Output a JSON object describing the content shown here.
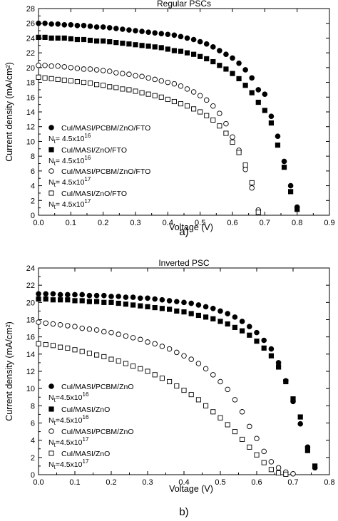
{
  "chart_data": [
    {
      "type": "scatter",
      "title": "Regular PSCs",
      "panel_label": "a)",
      "xlabel": "Voltage (V)",
      "ylabel": "Current density (mA/cm²)",
      "xlim": [
        0,
        0.9
      ],
      "ylim": [
        0,
        28
      ],
      "xticks": [
        "0.0",
        "0.1",
        "0.2",
        "0.3",
        "0.4",
        "0.5",
        "0.6",
        "0.7",
        "0.8",
        "0.9"
      ],
      "yticks": [
        "0",
        "2",
        "4",
        "6",
        "8",
        "10",
        "12",
        "14",
        "16",
        "18",
        "20",
        "22",
        "24",
        "26",
        "28"
      ],
      "grid": false,
      "legend_position": "lower-left",
      "series": [
        {
          "name": "CuI/MASI/PCBM/ZnO/FTO",
          "nt_label": "N",
          "nt_sub": "t",
          "nt_value": "= 4.5x10",
          "nt_exp": "16",
          "marker": "filled-circle",
          "x": [
            0.0,
            0.02,
            0.04,
            0.06,
            0.08,
            0.1,
            0.12,
            0.14,
            0.16,
            0.18,
            0.2,
            0.22,
            0.24,
            0.26,
            0.28,
            0.3,
            0.32,
            0.34,
            0.36,
            0.38,
            0.4,
            0.42,
            0.44,
            0.46,
            0.48,
            0.5,
            0.52,
            0.54,
            0.56,
            0.58,
            0.6,
            0.62,
            0.64,
            0.66,
            0.68,
            0.7,
            0.72,
            0.74,
            0.76,
            0.78,
            0.8
          ],
          "y": [
            26.0,
            26.0,
            25.9,
            25.9,
            25.8,
            25.8,
            25.7,
            25.7,
            25.6,
            25.5,
            25.5,
            25.4,
            25.3,
            25.2,
            25.1,
            25.0,
            24.9,
            24.8,
            24.7,
            24.6,
            24.5,
            24.4,
            24.2,
            24.0,
            23.8,
            23.5,
            23.2,
            22.8,
            22.3,
            21.8,
            21.3,
            20.6,
            19.7,
            18.6,
            17.0,
            16.4,
            13.4,
            10.7,
            7.3,
            4.0,
            1.1
          ]
        },
        {
          "name": "CuI/MASI/ZnO/FTO",
          "nt_label": "N",
          "nt_sub": "t",
          "nt_value": "= 4.5x10",
          "nt_exp": "16",
          "marker": "filled-square",
          "x": [
            0.0,
            0.02,
            0.04,
            0.06,
            0.08,
            0.1,
            0.12,
            0.14,
            0.16,
            0.18,
            0.2,
            0.22,
            0.24,
            0.26,
            0.28,
            0.3,
            0.32,
            0.34,
            0.36,
            0.38,
            0.4,
            0.42,
            0.44,
            0.46,
            0.48,
            0.5,
            0.52,
            0.54,
            0.56,
            0.58,
            0.6,
            0.62,
            0.64,
            0.66,
            0.68,
            0.7,
            0.72,
            0.74,
            0.76,
            0.78,
            0.8
          ],
          "y": [
            24.1,
            24.1,
            24.0,
            24.0,
            24.0,
            23.9,
            23.8,
            23.8,
            23.7,
            23.6,
            23.6,
            23.5,
            23.4,
            23.3,
            23.2,
            23.1,
            23.0,
            22.9,
            22.8,
            22.7,
            22.5,
            22.3,
            22.2,
            22.0,
            21.8,
            21.5,
            21.2,
            20.8,
            20.3,
            19.8,
            19.2,
            18.5,
            17.6,
            16.6,
            15.3,
            14.2,
            12.5,
            9.5,
            6.5,
            3.2,
            0.8
          ]
        },
        {
          "name": "CuI/MASI/PCBM/ZnO/FTO",
          "nt_label": "N",
          "nt_sub": "t",
          "nt_value": "= 4.5x10",
          "nt_exp": "17",
          "marker": "open-circle",
          "x": [
            0.0,
            0.02,
            0.04,
            0.06,
            0.08,
            0.1,
            0.12,
            0.14,
            0.16,
            0.18,
            0.2,
            0.22,
            0.24,
            0.26,
            0.28,
            0.3,
            0.32,
            0.34,
            0.36,
            0.38,
            0.4,
            0.42,
            0.44,
            0.46,
            0.48,
            0.5,
            0.52,
            0.54,
            0.56,
            0.58,
            0.6,
            0.62,
            0.64,
            0.66,
            0.68
          ],
          "y": [
            20.3,
            20.3,
            20.2,
            20.2,
            20.1,
            20.0,
            19.9,
            19.8,
            19.8,
            19.7,
            19.6,
            19.5,
            19.3,
            19.2,
            19.1,
            18.9,
            18.8,
            18.6,
            18.4,
            18.2,
            18.0,
            17.8,
            17.5,
            17.1,
            16.7,
            16.2,
            15.6,
            14.8,
            13.8,
            12.4,
            10.6,
            8.8,
            6.2,
            3.7,
            0.7
          ]
        },
        {
          "name": "CuI/MASI/ZnO/FTO",
          "nt_label": "N",
          "nt_sub": "t",
          "nt_value": "= 4.5x10",
          "nt_exp": "17",
          "marker": "open-square",
          "x": [
            0.0,
            0.02,
            0.04,
            0.06,
            0.08,
            0.1,
            0.12,
            0.14,
            0.16,
            0.18,
            0.2,
            0.22,
            0.24,
            0.26,
            0.28,
            0.3,
            0.32,
            0.34,
            0.36,
            0.38,
            0.4,
            0.42,
            0.44,
            0.46,
            0.48,
            0.5,
            0.52,
            0.54,
            0.56,
            0.58,
            0.6,
            0.62,
            0.64,
            0.66,
            0.68
          ],
          "y": [
            18.7,
            18.6,
            18.5,
            18.4,
            18.3,
            18.2,
            18.1,
            18.0,
            17.9,
            17.7,
            17.6,
            17.4,
            17.3,
            17.1,
            17.0,
            16.8,
            16.6,
            16.4,
            16.2,
            16.0,
            15.7,
            15.4,
            15.1,
            14.8,
            14.4,
            14.0,
            13.5,
            12.9,
            12.1,
            11.1,
            9.9,
            8.5,
            6.8,
            4.4,
            0.4
          ]
        }
      ]
    },
    {
      "type": "scatter",
      "title": "Inverted PSC",
      "panel_label": "b)",
      "xlabel": "Voltage (V)",
      "ylabel": "Current density (mA/cm²)",
      "xlim": [
        0,
        0.8
      ],
      "ylim": [
        0,
        24
      ],
      "xticks": [
        "0.0",
        "0.1",
        "0.2",
        "0.3",
        "0.4",
        "0.5",
        "0.6",
        "0.7",
        "0.8"
      ],
      "yticks": [
        "0",
        "2",
        "4",
        "6",
        "8",
        "10",
        "12",
        "14",
        "16",
        "18",
        "20",
        "22",
        "24"
      ],
      "grid": false,
      "legend_position": "lower-left",
      "series": [
        {
          "name": "CuI/MASI/PCBM/ZnO",
          "nt_label": "N",
          "nt_sub": "t",
          "nt_value": "=4.5x10",
          "nt_exp": "16",
          "marker": "filled-circle",
          "x": [
            0.0,
            0.02,
            0.04,
            0.06,
            0.08,
            0.1,
            0.12,
            0.14,
            0.16,
            0.18,
            0.2,
            0.22,
            0.24,
            0.26,
            0.28,
            0.3,
            0.32,
            0.34,
            0.36,
            0.38,
            0.4,
            0.42,
            0.44,
            0.46,
            0.48,
            0.5,
            0.52,
            0.54,
            0.56,
            0.58,
            0.6,
            0.62,
            0.64,
            0.66,
            0.68,
            0.7,
            0.72,
            0.74,
            0.76
          ],
          "y": [
            21.0,
            21.0,
            21.0,
            20.9,
            20.9,
            20.9,
            20.9,
            20.8,
            20.8,
            20.8,
            20.7,
            20.7,
            20.6,
            20.6,
            20.5,
            20.5,
            20.4,
            20.3,
            20.2,
            20.1,
            20.0,
            19.9,
            19.7,
            19.5,
            19.3,
            19.0,
            18.7,
            18.3,
            17.8,
            17.2,
            16.5,
            15.6,
            14.6,
            13.0,
            10.9,
            8.5,
            5.9,
            3.2,
            0.8
          ]
        },
        {
          "name": "CuI/MASI/ZnO",
          "nt_label": "N",
          "nt_sub": "t",
          "nt_value": "=4.5x10",
          "nt_exp": "16",
          "marker": "filled-square",
          "x": [
            0.0,
            0.02,
            0.04,
            0.06,
            0.08,
            0.1,
            0.12,
            0.14,
            0.16,
            0.18,
            0.2,
            0.22,
            0.24,
            0.26,
            0.28,
            0.3,
            0.32,
            0.34,
            0.36,
            0.38,
            0.4,
            0.42,
            0.44,
            0.46,
            0.48,
            0.5,
            0.52,
            0.54,
            0.56,
            0.58,
            0.6,
            0.62,
            0.64,
            0.66,
            0.68,
            0.7,
            0.72,
            0.74,
            0.76
          ],
          "y": [
            20.4,
            20.4,
            20.3,
            20.3,
            20.3,
            20.2,
            20.2,
            20.1,
            20.1,
            20.0,
            20.0,
            19.9,
            19.8,
            19.7,
            19.6,
            19.5,
            19.4,
            19.3,
            19.2,
            19.0,
            18.9,
            18.7,
            18.5,
            18.3,
            18.1,
            17.8,
            17.5,
            17.1,
            16.7,
            16.2,
            15.5,
            14.7,
            13.8,
            12.5,
            10.8,
            8.8,
            6.7,
            2.8,
            1.0
          ]
        },
        {
          "name": "CuI/MASI/PCBM/ZnO",
          "nt_label": "N",
          "nt_sub": "t",
          "nt_value": "=4.5x10",
          "nt_exp": "17",
          "marker": "open-circle",
          "x": [
            0.0,
            0.02,
            0.04,
            0.06,
            0.08,
            0.1,
            0.12,
            0.14,
            0.16,
            0.18,
            0.2,
            0.22,
            0.24,
            0.26,
            0.28,
            0.3,
            0.32,
            0.34,
            0.36,
            0.38,
            0.4,
            0.42,
            0.44,
            0.46,
            0.48,
            0.5,
            0.52,
            0.54,
            0.56,
            0.58,
            0.6,
            0.62,
            0.64,
            0.66,
            0.68,
            0.7
          ],
          "y": [
            17.7,
            17.6,
            17.5,
            17.4,
            17.3,
            17.2,
            17.0,
            16.9,
            16.8,
            16.6,
            16.5,
            16.3,
            16.1,
            15.9,
            15.7,
            15.4,
            15.2,
            14.9,
            14.6,
            14.2,
            13.8,
            13.4,
            12.9,
            12.3,
            11.6,
            10.8,
            9.9,
            8.7,
            7.3,
            5.6,
            4.2,
            2.7,
            1.5,
            0.8,
            0.3,
            0.1
          ]
        },
        {
          "name": "CuI/MASI/ZnO",
          "nt_label": "N",
          "nt_sub": "t",
          "nt_value": "=4.5x10",
          "nt_exp": "17",
          "marker": "open-square",
          "x": [
            0.0,
            0.02,
            0.04,
            0.06,
            0.08,
            0.1,
            0.12,
            0.14,
            0.16,
            0.18,
            0.2,
            0.22,
            0.24,
            0.26,
            0.28,
            0.3,
            0.32,
            0.34,
            0.36,
            0.38,
            0.4,
            0.42,
            0.44,
            0.46,
            0.48,
            0.5,
            0.52,
            0.54,
            0.56,
            0.58,
            0.6,
            0.62,
            0.64,
            0.66,
            0.68
          ],
          "y": [
            15.2,
            15.1,
            15.0,
            14.8,
            14.7,
            14.5,
            14.3,
            14.1,
            13.9,
            13.7,
            13.4,
            13.2,
            12.9,
            12.6,
            12.3,
            12.0,
            11.6,
            11.2,
            10.8,
            10.3,
            9.8,
            9.3,
            8.7,
            8.0,
            7.3,
            6.6,
            5.8,
            5.0,
            4.1,
            3.2,
            2.3,
            1.4,
            0.6,
            0.2,
            0.05
          ]
        }
      ]
    }
  ]
}
